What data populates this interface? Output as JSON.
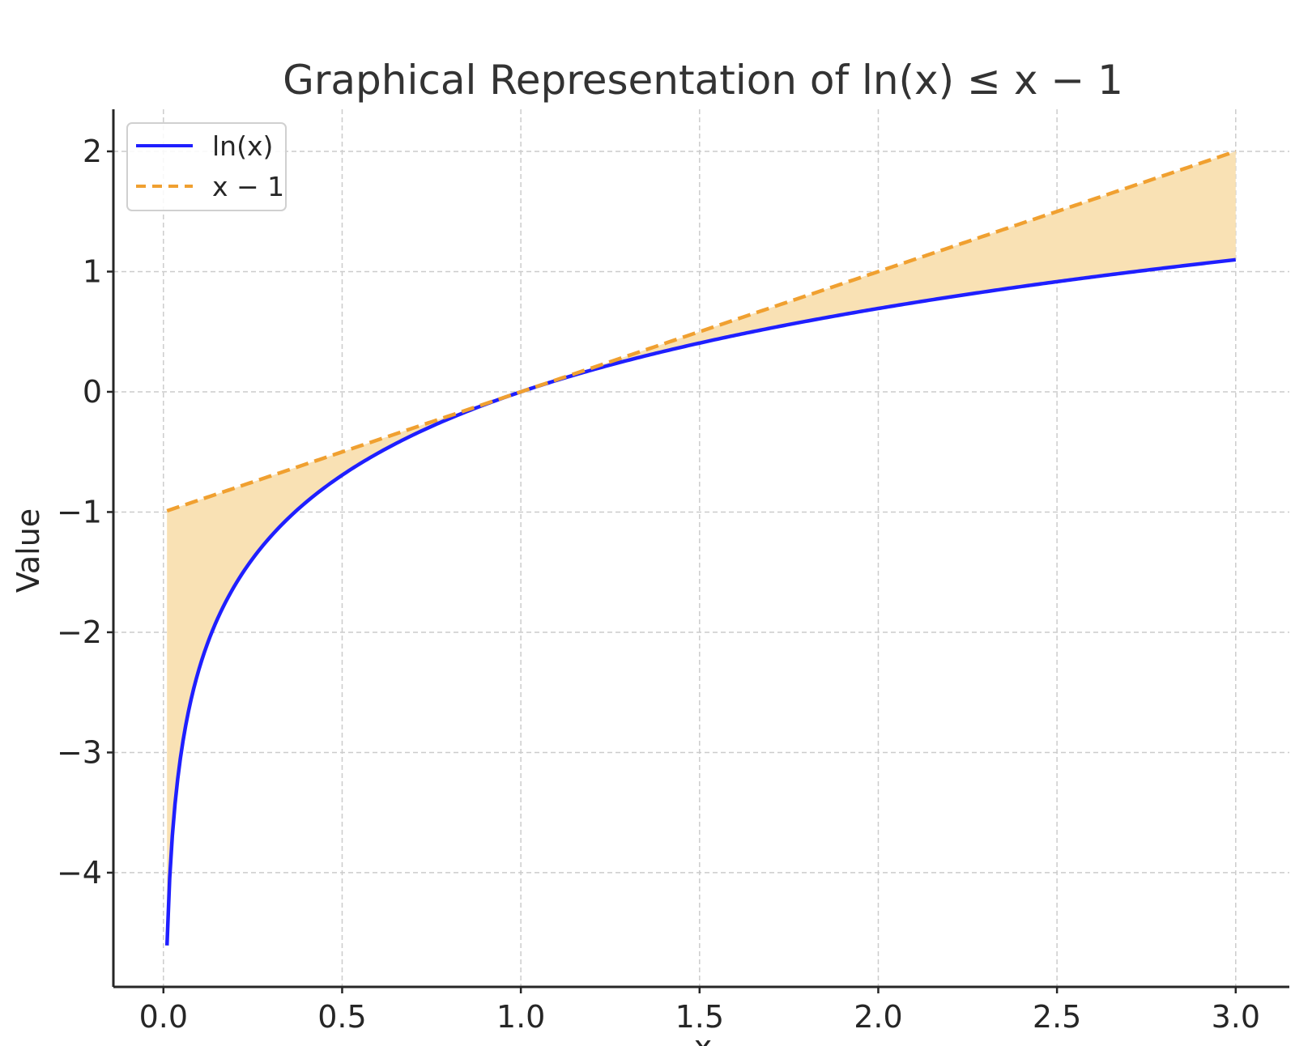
{
  "chart_data": {
    "type": "line",
    "title": "Graphical Representation of ln(x) ≤ x − 1",
    "xlabel": "x",
    "ylabel": "Value",
    "xlim": [
      -0.14,
      3.15
    ],
    "ylim": [
      -4.95,
      2.35
    ],
    "x_ticks": [
      0.0,
      0.5,
      1.0,
      1.5,
      2.0,
      2.5,
      3.0
    ],
    "x_tick_labels": [
      "0.0",
      "0.5",
      "1.0",
      "1.5",
      "2.0",
      "2.5",
      "3.0"
    ],
    "y_ticks": [
      2,
      1,
      0,
      -1,
      -2,
      -3,
      -4
    ],
    "y_tick_labels": [
      "2",
      "1",
      "0",
      "−1",
      "−2",
      "−3",
      "−4"
    ],
    "x_range": [
      0.01,
      3.0
    ],
    "grid": true,
    "legend_position": "top-left",
    "series": [
      {
        "name": "ln(x)",
        "function": "ln(x)",
        "color": "#1f1fff",
        "style": "solid",
        "points": [
          [
            0.01,
            -4.61
          ],
          [
            0.05,
            -3.0
          ],
          [
            0.1,
            -2.3
          ],
          [
            0.2,
            -1.61
          ],
          [
            0.3,
            -1.2
          ],
          [
            0.4,
            -0.92
          ],
          [
            0.5,
            -0.69
          ],
          [
            0.75,
            -0.29
          ],
          [
            1.0,
            0.0
          ],
          [
            1.5,
            0.41
          ],
          [
            2.0,
            0.69
          ],
          [
            2.5,
            0.92
          ],
          [
            3.0,
            1.1
          ]
        ]
      },
      {
        "name": "x − 1",
        "function": "x - 1",
        "color": "#f0a030",
        "style": "dashed",
        "points": [
          [
            0.01,
            -0.99
          ],
          [
            1.0,
            0.0
          ],
          [
            3.0,
            2.0
          ]
        ]
      }
    ],
    "fill_between": {
      "upper": "x − 1",
      "lower": "ln(x)",
      "color": "#f9e1b4"
    }
  }
}
